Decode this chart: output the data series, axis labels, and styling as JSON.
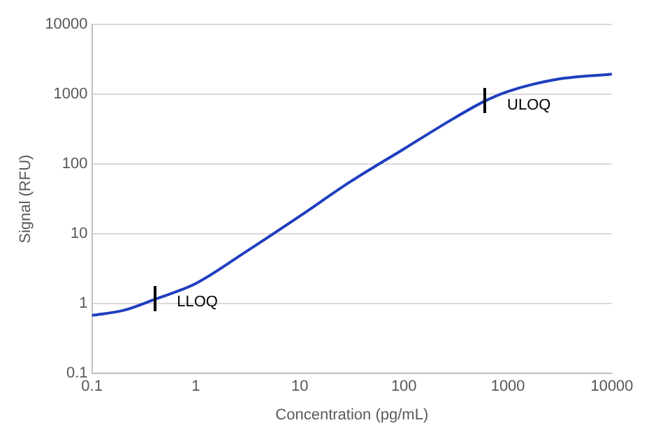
{
  "chart_data": {
    "type": "line",
    "xlabel": "Concentration (pg/mL)",
    "ylabel": "Signal (RFU)",
    "log": "xy",
    "grid": "y",
    "marker": "none",
    "line_style": "solid",
    "xlim": [
      0.1,
      10000
    ],
    "xticks": [
      0.1,
      1,
      10,
      100,
      1000,
      10000
    ],
    "ylim": [
      0.1,
      10000
    ],
    "yticks": [
      0.1,
      1,
      10,
      100,
      1000,
      10000
    ],
    "x": [
      0.1,
      0.2,
      0.4,
      1,
      3,
      10,
      30,
      100,
      300,
      600,
      1000,
      3000,
      10000
    ],
    "series": [
      {
        "color": "#1f3fbf",
        "values": [
          0.68,
          0.8,
          1.15,
          1.95,
          5.5,
          18,
          55,
          165,
          450,
          800,
          1100,
          1650,
          1950
        ]
      }
    ],
    "annotations": [
      {
        "text": "LLOQ",
        "x": 0.4,
        "y": 1.2
      },
      {
        "text": "ULOQ",
        "x": 600,
        "y": 800
      }
    ]
  }
}
